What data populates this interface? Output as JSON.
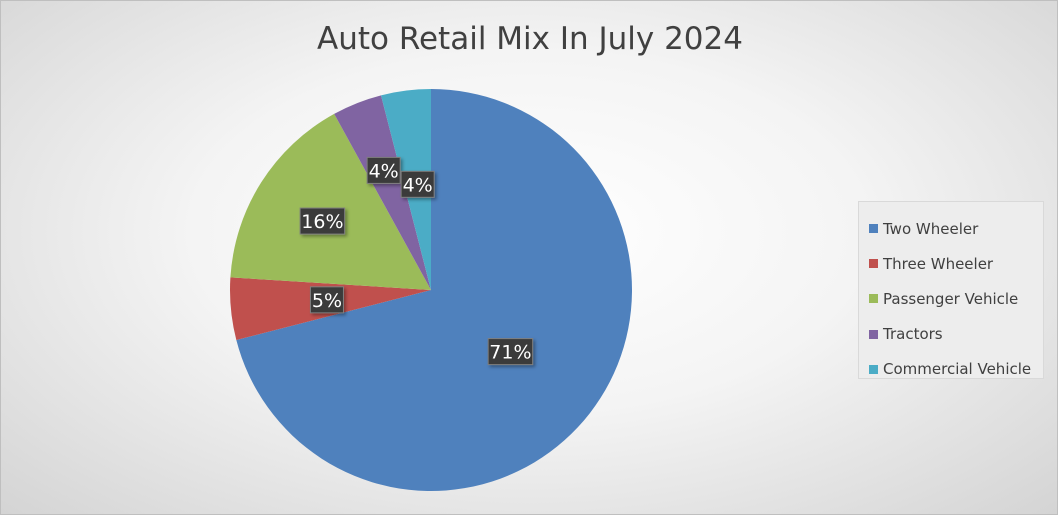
{
  "chart_data": {
    "type": "pie",
    "title": "Auto Retail Mix In July 2024",
    "categories": [
      "Two Wheeler",
      "Three Wheeler",
      "Passenger Vehicle",
      "Tractors",
      "Commercial Vehicle"
    ],
    "values": [
      71,
      5,
      16,
      4,
      4
    ],
    "data_labels": [
      "71%",
      "5%",
      "16%",
      "4%",
      "4%"
    ],
    "colors": [
      "#4f81bd",
      "#c0504d",
      "#9bbb59",
      "#8064a2",
      "#4bacc6"
    ],
    "legend_position": "right",
    "start_angle": "12 o'clock",
    "direction": "clockwise"
  }
}
